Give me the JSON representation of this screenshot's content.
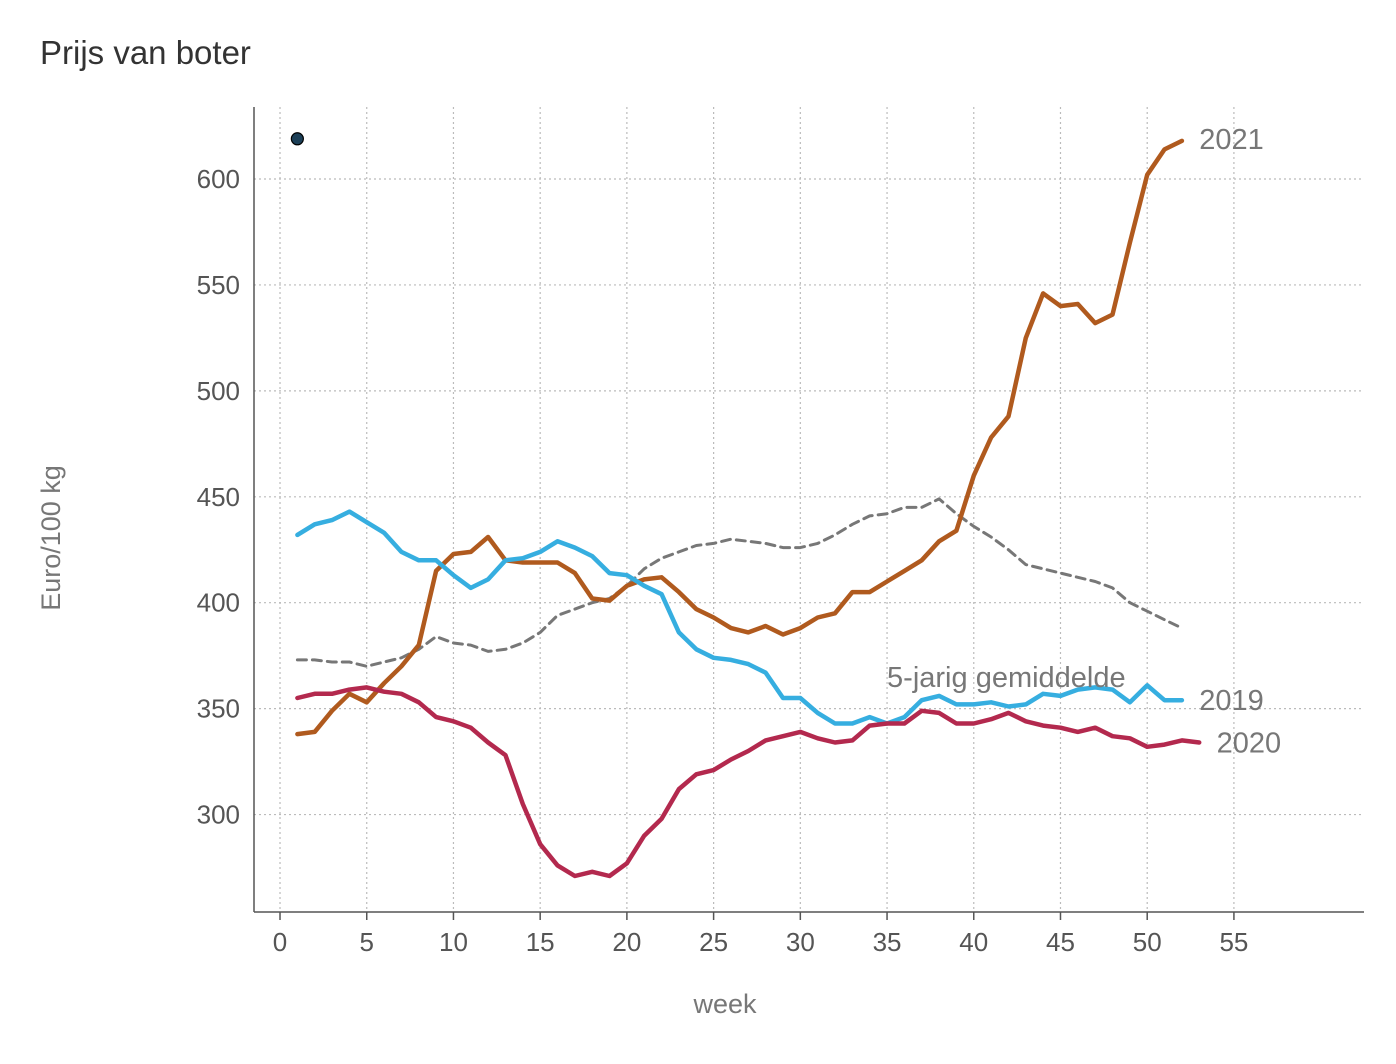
{
  "title": "Prijs van boter",
  "chart_data": {
    "type": "line",
    "title": "Prijs van boter",
    "xlabel": "week",
    "ylabel": "Euro/100 kg",
    "xlim": [
      -1.5,
      62.5
    ],
    "ylim": [
      254,
      634
    ],
    "xticks": [
      0,
      5,
      10,
      15,
      20,
      25,
      30,
      35,
      40,
      45,
      50,
      55
    ],
    "yticks": [
      300,
      350,
      400,
      450,
      500,
      550,
      600
    ],
    "grid": true,
    "point": {
      "x": 1,
      "y": 619,
      "color": "#1c3f57"
    },
    "series": [
      {
        "name": "2021",
        "color": "#b05a1e",
        "dashed": false,
        "label_at": [
          53,
          619
        ],
        "x": [
          1,
          2,
          3,
          4,
          5,
          6,
          7,
          8,
          9,
          10,
          11,
          12,
          13,
          14,
          15,
          16,
          17,
          18,
          19,
          20,
          21,
          22,
          23,
          24,
          25,
          26,
          27,
          28,
          29,
          30,
          31,
          32,
          33,
          34,
          35,
          36,
          37,
          38,
          39,
          40,
          41,
          42,
          43,
          44,
          45,
          46,
          47,
          48,
          49,
          50,
          51,
          52
        ],
        "y": [
          338,
          339,
          349,
          357,
          353,
          362,
          370,
          380,
          415,
          423,
          424,
          431,
          420,
          419,
          419,
          419,
          414,
          402,
          401,
          408,
          411,
          412,
          405,
          397,
          393,
          388,
          386,
          389,
          385,
          388,
          393,
          395,
          405,
          405,
          410,
          415,
          420,
          429,
          434,
          460,
          478,
          488,
          525,
          546,
          540,
          541,
          532,
          536,
          570,
          602,
          614,
          618
        ]
      },
      {
        "name": "2019",
        "color": "#36aee0",
        "dashed": false,
        "label_at": [
          53,
          354
        ],
        "x": [
          1,
          2,
          3,
          4,
          5,
          6,
          7,
          8,
          9,
          10,
          11,
          12,
          13,
          14,
          15,
          16,
          17,
          18,
          19,
          20,
          21,
          22,
          23,
          24,
          25,
          26,
          27,
          28,
          29,
          30,
          31,
          32,
          33,
          34,
          35,
          36,
          37,
          38,
          39,
          40,
          41,
          42,
          43,
          44,
          45,
          46,
          47,
          48,
          49,
          50,
          51,
          52
        ],
        "y": [
          432,
          437,
          439,
          443,
          438,
          433,
          424,
          420,
          420,
          413,
          407,
          411,
          420,
          421,
          424,
          429,
          426,
          422,
          414,
          413,
          408,
          404,
          386,
          378,
          374,
          373,
          371,
          367,
          355,
          355,
          348,
          343,
          343,
          346,
          343,
          346,
          354,
          356,
          352,
          352,
          353,
          351,
          352,
          357,
          356,
          359,
          360,
          359,
          353,
          361,
          354,
          354
        ]
      },
      {
        "name": "2020",
        "color": "#b3294e",
        "dashed": false,
        "label_at": [
          54,
          334
        ],
        "x": [
          1,
          2,
          3,
          4,
          5,
          6,
          7,
          8,
          9,
          10,
          11,
          12,
          13,
          14,
          15,
          16,
          17,
          18,
          19,
          20,
          21,
          22,
          23,
          24,
          25,
          26,
          27,
          28,
          29,
          30,
          31,
          32,
          33,
          34,
          35,
          36,
          37,
          38,
          39,
          40,
          41,
          42,
          43,
          44,
          45,
          46,
          47,
          48,
          49,
          50,
          51,
          52,
          53
        ],
        "y": [
          355,
          357,
          357,
          359,
          360,
          358,
          357,
          353,
          346,
          344,
          341,
          334,
          328,
          305,
          286,
          276,
          271,
          273,
          271,
          277,
          290,
          298,
          312,
          319,
          321,
          326,
          330,
          335,
          337,
          339,
          336,
          334,
          335,
          342,
          343,
          343,
          349,
          348,
          343,
          343,
          345,
          348,
          344,
          342,
          341,
          339,
          341,
          337,
          336,
          332,
          333,
          335,
          334
        ]
      },
      {
        "name": "5-jarig gemiddelde",
        "color": "#777777",
        "dashed": true,
        "label_at": [
          35,
          365
        ],
        "x": [
          1,
          2,
          3,
          4,
          5,
          6,
          7,
          8,
          9,
          10,
          11,
          12,
          13,
          14,
          15,
          16,
          17,
          18,
          19,
          20,
          21,
          22,
          23,
          24,
          25,
          26,
          27,
          28,
          29,
          30,
          31,
          32,
          33,
          34,
          35,
          36,
          37,
          38,
          39,
          40,
          41,
          42,
          43,
          44,
          45,
          46,
          47,
          48,
          49,
          50,
          51,
          52
        ],
        "y": [
          373,
          373,
          372,
          372,
          370,
          372,
          374,
          378,
          384,
          381,
          380,
          377,
          378,
          381,
          386,
          394,
          397,
          400,
          402,
          408,
          416,
          421,
          424,
          427,
          428,
          430,
          429,
          428,
          426,
          426,
          428,
          432,
          437,
          441,
          442,
          445,
          445,
          449,
          442,
          436,
          431,
          425,
          418,
          416,
          414,
          412,
          410,
          407,
          400,
          396,
          392,
          388
        ]
      }
    ]
  }
}
